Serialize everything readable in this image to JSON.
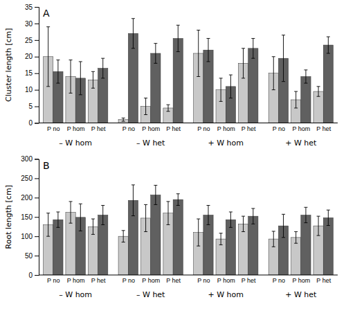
{
  "chart_data": [
    {
      "type": "bar",
      "title": "A",
      "y_label": "Cluster length [cm]",
      "categories": [
        "P no",
        "P hom",
        "P het",
        "P no",
        "P hom",
        "P het",
        "P no",
        "P hom",
        "P het",
        "P no",
        "P hom",
        "P het"
      ],
      "groups": [
        "– W hom",
        "– W het",
        "+ W hom",
        "+ W het"
      ],
      "series": [
        {
          "color": "#c8c8c8",
          "values": [
            20.0,
            14.0,
            13.0,
            1.0,
            5.0,
            4.5,
            21.0,
            10.0,
            18.0,
            15.0,
            7.0,
            9.5
          ],
          "errors": [
            9.0,
            5.0,
            2.5,
            0.5,
            2.5,
            1.0,
            7.0,
            3.5,
            4.5,
            5.0,
            2.5,
            1.5
          ]
        },
        {
          "color": "#606060",
          "values": [
            15.5,
            13.5,
            16.5,
            27.0,
            21.0,
            25.5,
            22.0,
            11.0,
            22.5,
            19.5,
            14.0,
            23.5
          ],
          "errors": [
            3.5,
            5.0,
            3.0,
            4.5,
            3.0,
            4.0,
            3.5,
            3.5,
            3.0,
            7.0,
            2.0,
            2.5
          ]
        }
      ],
      "ylim": [
        0,
        35
      ],
      "yticks": [
        0,
        5,
        10,
        15,
        20,
        25,
        30,
        35
      ],
      "grid": false
    },
    {
      "type": "bar",
      "title": "B",
      "y_label": "Root length [cm]",
      "categories": [
        "P no",
        "P hom",
        "P het",
        "P no",
        "P hom",
        "P het",
        "P no",
        "P hom",
        "P het",
        "P no",
        "P hom",
        "P het"
      ],
      "groups": [
        "– W hom",
        "– W het",
        "+ W hom",
        "+ W het"
      ],
      "series": [
        {
          "color": "#c8c8c8",
          "values": [
            130.0,
            162.0,
            125.0,
            100.0,
            147.0,
            160.0,
            110.0,
            93.0,
            132.0,
            93.0,
            97.0,
            127.0
          ],
          "errors": [
            30.0,
            28.0,
            20.0,
            15.0,
            35.0,
            30.0,
            35.0,
            15.0,
            20.0,
            20.0,
            15.0,
            25.0
          ]
        },
        {
          "color": "#606060",
          "values": [
            143.0,
            149.0,
            155.0,
            193.0,
            207.0,
            195.0,
            155.0,
            143.0,
            152.0,
            127.0,
            155.0,
            148.0
          ],
          "errors": [
            20.0,
            35.0,
            25.0,
            40.0,
            25.0,
            15.0,
            25.0,
            20.0,
            20.0,
            30.0,
            20.0,
            20.0
          ]
        }
      ],
      "ylim": [
        0,
        300
      ],
      "yticks": [
        0,
        50,
        100,
        150,
        200,
        250,
        300
      ],
      "grid": false
    }
  ]
}
